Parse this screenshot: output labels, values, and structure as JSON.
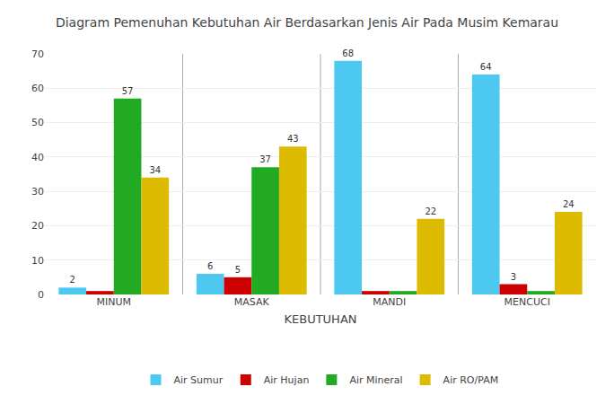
{
  "chart_data": {
    "type": "bar",
    "title": "Diagram Pemenuhan Kebutuhan Air Berdasarkan Jenis Air Pada Musim Kemarau",
    "xlabel": "KEBUTUHAN",
    "categories": [
      "MINUM",
      "MASAK",
      "MANDI",
      "MENCUCI"
    ],
    "series": [
      {
        "name": "Air Sumur",
        "color": "#4DC8F0",
        "values": [
          2,
          6,
          68,
          64
        ],
        "value_labels": [
          "2",
          "6",
          "68",
          "64"
        ]
      },
      {
        "name": "Air Hujan",
        "color": "#CC0000",
        "values": [
          1,
          5,
          1,
          3
        ],
        "value_labels": [
          null,
          "5",
          null,
          "3"
        ]
      },
      {
        "name": "Air Mineral",
        "color": "#22AA22",
        "values": [
          57,
          37,
          1,
          1
        ],
        "value_labels": [
          "57",
          "37",
          null,
          null
        ]
      },
      {
        "name": "Air RO/PAM",
        "color": "#DDBB00",
        "values": [
          34,
          43,
          22,
          24
        ],
        "value_labels": [
          "34",
          "43",
          "22",
          "24"
        ]
      }
    ],
    "ylim": [
      0,
      70
    ],
    "yticks": [
      0,
      10,
      20,
      30,
      40,
      50,
      60,
      70
    ],
    "grid": true,
    "legend": "bottom",
    "data_labels": true
  }
}
